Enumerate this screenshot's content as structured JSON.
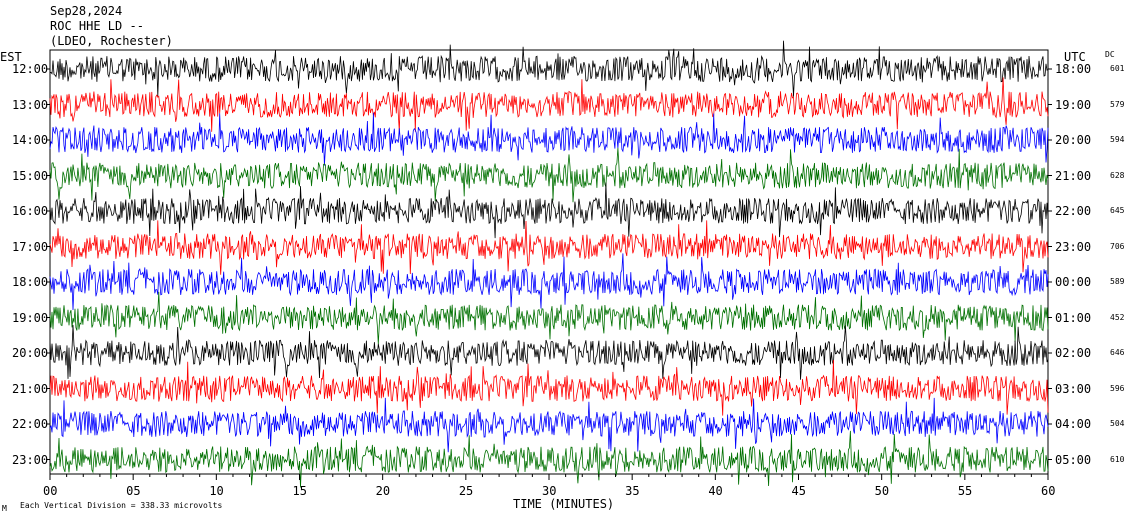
{
  "header": {
    "date": "Sep28,2024",
    "station": "ROC HHE LD --",
    "network": "(LDEO, Rochester)"
  },
  "tz_left": "EST",
  "tz_right": "UTC",
  "dc_header": "DC",
  "xlabel": "TIME (MINUTES)",
  "footer_note": "Each Vertical Division = 338.33 microvolts",
  "corner_mark": "M",
  "colors": {
    "black": "#000000",
    "red": "#ff0000",
    "blue": "#0000ff",
    "green": "#007000"
  },
  "chart_data": {
    "type": "line",
    "title": "",
    "xlabel": "TIME (MINUTES)",
    "xlim": [
      0,
      60
    ],
    "x_ticks": [
      "00",
      "05",
      "10",
      "15",
      "20",
      "25",
      "30",
      "35",
      "40",
      "45",
      "50",
      "55",
      "60"
    ],
    "grid": false,
    "rows": [
      {
        "est": "12:00",
        "utc": "18:00",
        "dc": "601",
        "color": "black"
      },
      {
        "est": "13:00",
        "utc": "19:00",
        "dc": "579",
        "color": "red"
      },
      {
        "est": "14:00",
        "utc": "20:00",
        "dc": "594",
        "color": "blue"
      },
      {
        "est": "15:00",
        "utc": "21:00",
        "dc": "628",
        "color": "green"
      },
      {
        "est": "16:00",
        "utc": "22:00",
        "dc": "645",
        "color": "black"
      },
      {
        "est": "17:00",
        "utc": "23:00",
        "dc": "706",
        "color": "red"
      },
      {
        "est": "18:00",
        "utc": "00:00",
        "dc": "589",
        "color": "blue"
      },
      {
        "est": "19:00",
        "utc": "01:00",
        "dc": "452",
        "color": "green"
      },
      {
        "est": "20:00",
        "utc": "02:00",
        "dc": "646",
        "color": "black"
      },
      {
        "est": "21:00",
        "utc": "03:00",
        "dc": "596",
        "color": "red"
      },
      {
        "est": "22:00",
        "utc": "04:00",
        "dc": "504",
        "color": "blue"
      },
      {
        "est": "23:00",
        "utc": "05:00",
        "dc": "610",
        "color": "green"
      }
    ]
  }
}
